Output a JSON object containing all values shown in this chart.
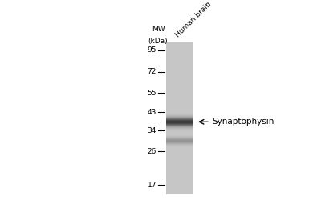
{
  "mw_labels": [
    95,
    72,
    55,
    43,
    34,
    26,
    17
  ],
  "mw_header_line1": "MW",
  "mw_header_line2": "(kDa)",
  "sample_label": "Human brain",
  "band1_mw": 38,
  "band2_mw": 30,
  "arrow_label": "Synaptophysin",
  "font_size_labels": 6.5,
  "font_size_mw_header": 6.5,
  "font_size_sample": 6.5,
  "font_size_arrow_label": 7.5,
  "lane_gray": 0.78,
  "band1_dark": 0.22,
  "band2_dark": 0.58,
  "log_mw_min": 2.833,
  "log_mw_max": 4.615
}
